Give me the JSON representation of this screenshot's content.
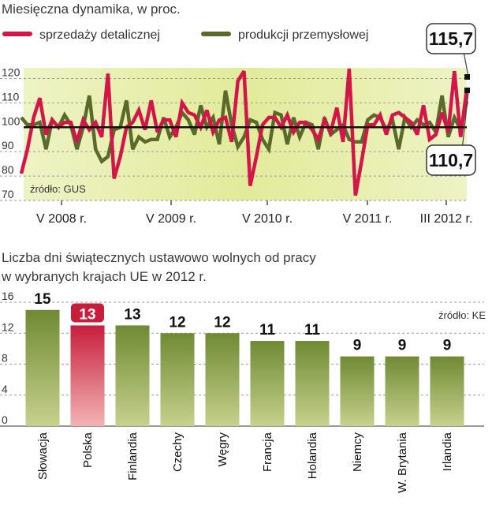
{
  "colors": {
    "retail": "#d4154a",
    "industrial": "#5a6a2a",
    "bar_top": "#6f8a34",
    "bar_bottom": "#c7d18c",
    "bar_highlight_top": "#c81e3c",
    "bar_highlight_bottom": "#f2b4b4",
    "band": "#e4ec9e"
  },
  "chart_data": [
    {
      "type": "line",
      "title": "Miesięczna dynamika, w proc.",
      "legend": [
        {
          "name": "sprzedaży detalicznej",
          "color": "#d4154a"
        },
        {
          "name": "produkcji przemysłowej",
          "color": "#5a6a2a"
        }
      ],
      "source": "źródło: GUS",
      "ylim": [
        70,
        125
      ],
      "yticks": [
        70,
        80,
        90,
        100,
        110,
        120
      ],
      "reference_line": 100,
      "x_labels": [
        "V 2008 r.",
        "V 2009 r.",
        "V 2010 r.",
        "V 2011 r.",
        "III 2012 r."
      ],
      "series": [
        {
          "name": "sprzedaży detalicznej",
          "values": [
            81,
            91,
            104,
            112,
            97,
            103,
            100,
            102,
            102,
            94,
            103,
            99,
            102,
            96,
            122,
            79,
            88,
            100,
            102,
            107,
            99,
            111,
            98,
            103,
            103,
            96,
            110,
            106,
            105,
            100,
            107,
            98,
            103,
            104,
            94,
            119,
            123,
            76,
            88,
            101,
            104,
            104,
            100,
            105,
            98,
            102,
            102,
            99,
            95,
            103,
            98,
            108,
            94,
            124,
            72,
            86,
            101,
            101,
            105,
            97,
            105,
            106,
            104,
            102,
            97,
            109,
            95,
            97,
            106,
            98,
            123,
            96,
            115.7
          ]
        },
        {
          "name": "produkcji przemysłowej",
          "values": [
            104,
            101,
            101,
            102,
            91,
            103,
            100,
            105,
            101,
            91,
            100,
            113,
            91,
            86,
            88,
            99,
            100,
            111,
            91,
            96,
            94,
            95,
            95,
            104,
            96,
            100,
            106,
            103,
            97,
            109,
            100,
            104,
            93,
            115,
            101,
            92,
            96,
            103,
            102,
            95,
            91,
            106,
            105,
            93,
            104,
            96,
            102,
            101,
            91,
            104,
            97,
            99,
            101,
            95,
            94,
            94,
            103,
            105,
            104,
            99,
            103,
            91,
            104,
            100,
            103,
            101,
            102,
            98,
            113,
            96,
            104,
            99,
            110.7
          ]
        }
      ],
      "callouts": {
        "retail_last": "115,7",
        "industrial_last": "110,7"
      }
    },
    {
      "type": "bar",
      "title": "Liczba dni świątecznych ustawowo wolnych od pracy w wybranych krajach UE w 2012 r.",
      "title_lines": [
        "Liczba dni świątecznych ustawowo wolnych od pracy",
        "w wybranych krajach UE w 2012 r."
      ],
      "source": "źródło: KE",
      "ylim": [
        0,
        16
      ],
      "yticks": [
        0,
        4,
        8,
        12,
        16
      ],
      "categories": [
        "Słowacja",
        "Polska",
        "Finlandia",
        "Czechy",
        "Węgry",
        "Francja",
        "Holandia",
        "Niemcy",
        "W. Brytania",
        "Irlandia"
      ],
      "values": [
        15,
        13,
        13,
        12,
        12,
        11,
        11,
        9,
        9,
        9
      ],
      "highlight": "Polska"
    }
  ]
}
